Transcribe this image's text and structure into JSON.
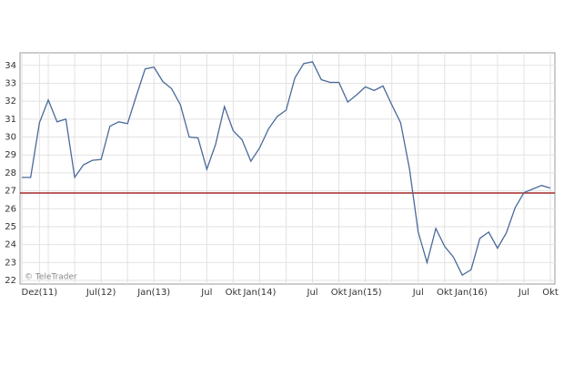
{
  "chart_data": {
    "type": "line",
    "categories": [
      null,
      null,
      "Dez(11)",
      null,
      null,
      null,
      null,
      null,
      null,
      "Jul(12)",
      null,
      null,
      null,
      null,
      null,
      "Jan(13)",
      null,
      null,
      null,
      null,
      null,
      "Jul",
      null,
      null,
      "Okt",
      null,
      null,
      "Jan(14)",
      null,
      null,
      null,
      null,
      null,
      "Jul",
      null,
      null,
      "Okt",
      null,
      null,
      "Jan(15)",
      null,
      null,
      null,
      null,
      null,
      "Jul",
      null,
      null,
      "Okt",
      null,
      null,
      "Jan(16)",
      null,
      null,
      null,
      null,
      null,
      "Jul",
      null,
      null,
      "Okt"
    ],
    "series": [
      {
        "color": "#4a6a9a",
        "values": [
          27.75,
          27.75,
          30.8,
          32.07,
          30.85,
          31.0,
          27.75,
          28.45,
          28.7,
          28.75,
          30.6,
          30.85,
          30.75,
          32.3,
          33.8,
          33.9,
          33.1,
          32.7,
          31.8,
          30.0,
          29.95,
          28.2,
          29.6,
          31.7,
          30.35,
          29.85,
          28.65,
          29.4,
          30.45,
          31.15,
          31.5,
          33.3,
          34.1,
          34.2,
          33.2,
          33.05,
          33.05,
          31.95,
          32.35,
          32.8,
          32.6,
          32.85,
          31.8,
          30.8,
          28.25,
          24.7,
          23.0,
          24.9,
          23.9,
          23.3,
          22.3,
          22.6,
          24.35,
          24.7,
          23.8,
          24.65,
          26.05,
          26.9,
          27.1,
          27.3,
          27.15
        ]
      }
    ],
    "reference_line": {
      "value": 26.88,
      "color": "#a52a2a"
    },
    "ylim": [
      21.8,
      34.7
    ],
    "yticks": [
      22,
      23,
      24,
      25,
      26,
      27,
      28,
      29,
      30,
      31,
      32,
      33,
      34
    ],
    "grid": true,
    "watermark": "© TeleTrader"
  }
}
